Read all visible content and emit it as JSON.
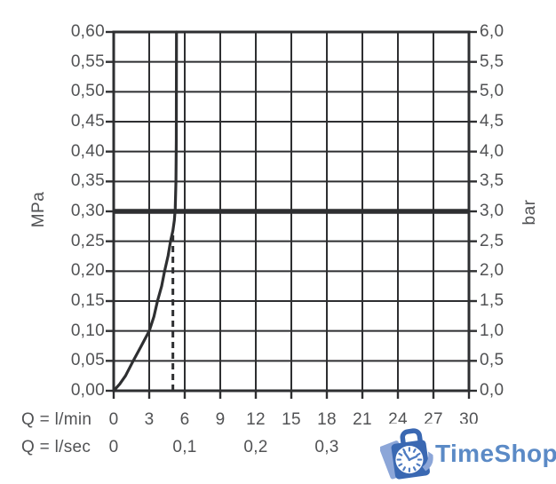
{
  "chart_data": {
    "type": "line",
    "description": "Flow rate vs pressure diagram with limit line at 0,30 MPa / 3,0 bar",
    "x_axis": {
      "label_row1": "Q = l/min",
      "label_row2": "Q = l/sec",
      "xlim": [
        0,
        30
      ]
    },
    "y_axis_left": {
      "unit": "MPa",
      "ylim": [
        0,
        0.6
      ]
    },
    "y_axis_right": {
      "unit": "bar",
      "ylim": [
        0,
        6.0
      ]
    },
    "ticks": {
      "y_left": [
        {
          "v": 0.6,
          "label": "0,60"
        },
        {
          "v": 0.55,
          "label": "0,55"
        },
        {
          "v": 0.5,
          "label": "0,50"
        },
        {
          "v": 0.45,
          "label": "0,45"
        },
        {
          "v": 0.4,
          "label": "0,40"
        },
        {
          "v": 0.35,
          "label": "0,35"
        },
        {
          "v": 0.3,
          "label": "0,30"
        },
        {
          "v": 0.25,
          "label": "0,25"
        },
        {
          "v": 0.2,
          "label": "0,20"
        },
        {
          "v": 0.15,
          "label": "0,15"
        },
        {
          "v": 0.1,
          "label": "0,10"
        },
        {
          "v": 0.05,
          "label": "0,05"
        },
        {
          "v": 0.0,
          "label": "0,00"
        }
      ],
      "y_right": [
        {
          "v": 6.0,
          "label": "6,0"
        },
        {
          "v": 5.5,
          "label": "5,5"
        },
        {
          "v": 5.0,
          "label": "5,0"
        },
        {
          "v": 4.5,
          "label": "4,5"
        },
        {
          "v": 4.0,
          "label": "4,0"
        },
        {
          "v": 3.5,
          "label": "3,5"
        },
        {
          "v": 3.0,
          "label": "3,0"
        },
        {
          "v": 2.5,
          "label": "2,5"
        },
        {
          "v": 2.0,
          "label": "2,0"
        },
        {
          "v": 1.5,
          "label": "1,5"
        },
        {
          "v": 1.0,
          "label": "1,0"
        },
        {
          "v": 0.5,
          "label": "0,5"
        },
        {
          "v": 0.0,
          "label": "0,0"
        }
      ],
      "x_lmin": [
        {
          "v": 0,
          "label": "0"
        },
        {
          "v": 3,
          "label": "3"
        },
        {
          "v": 6,
          "label": "6"
        },
        {
          "v": 9,
          "label": "9"
        },
        {
          "v": 12,
          "label": "12"
        },
        {
          "v": 15,
          "label": "15"
        },
        {
          "v": 18,
          "label": "18"
        },
        {
          "v": 21,
          "label": "21"
        },
        {
          "v": 24,
          "label": "24"
        },
        {
          "v": 27,
          "label": "27"
        },
        {
          "v": 30,
          "label": "30"
        }
      ],
      "x_lsec": [
        {
          "v": 0,
          "label": "0"
        },
        {
          "v": 6,
          "label": "0,1"
        },
        {
          "v": 12,
          "label": "0,2"
        },
        {
          "v": 18,
          "label": "0,3"
        }
      ]
    },
    "curve": {
      "name": "pressure-flow-curve",
      "points_lmin_mpa": [
        [
          0,
          0
        ],
        [
          0.5,
          0.011
        ],
        [
          1.0,
          0.025
        ],
        [
          1.65,
          0.05
        ],
        [
          2.3,
          0.074
        ],
        [
          3.0,
          0.1
        ],
        [
          3.4,
          0.124
        ],
        [
          3.7,
          0.15
        ],
        [
          4.05,
          0.175
        ],
        [
          4.3,
          0.2
        ],
        [
          4.6,
          0.226
        ],
        [
          4.8,
          0.25
        ],
        [
          5.0,
          0.268
        ],
        [
          5.12,
          0.285
        ],
        [
          5.2,
          0.305
        ],
        [
          5.26,
          0.35
        ],
        [
          5.29,
          0.42
        ],
        [
          5.3,
          0.6
        ]
      ]
    },
    "reference_line": {
      "mpa": 0.3,
      "bar": 3.0
    },
    "dashed_line": {
      "x_lmin": 5.0,
      "top_mpa": 0.263
    },
    "grid": "on",
    "style": {
      "grid_color": "#2e2f31",
      "text_color": "#515254"
    }
  },
  "logo": {
    "text": "TimeShop",
    "icon": "stopwatch-bag-icon",
    "text_color": "#5b8ac6",
    "bag_color": "#3a68b2",
    "accent_color": "#8ca6d8"
  }
}
